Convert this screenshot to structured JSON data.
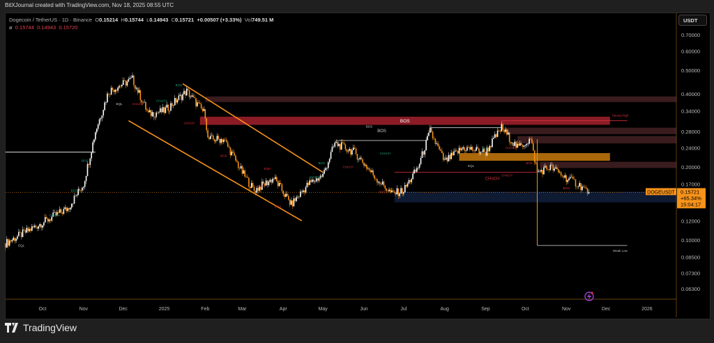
{
  "credit": "BitXJournal created with TradingView.com, Nov 18, 2025 08:55 UTC",
  "legend": {
    "symbol": "Dogecoin / TetherUS · 1D · Binance",
    "o_label": "O",
    "o": "0.15214",
    "h_label": "H",
    "h": "0.15744",
    "l_label": "L",
    "l": "0.14943",
    "c_label": "C",
    "c": "0.15721",
    "change": "+0.00507 (+3.33%)",
    "vol_label": "Vol",
    "vol": "749.51 M",
    "ind_symbol": "ø",
    "ind_values": [
      "0.15744",
      "0.14943",
      "0.15720"
    ]
  },
  "price_axis": {
    "unit": "USDT",
    "ticks": [
      "0.70000",
      "0.60000",
      "0.50000",
      "0.40000",
      "0.34000",
      "0.28000",
      "0.24000",
      "0.20000",
      "0.17000",
      "0.12000",
      "0.10000",
      "0.08500",
      "0.07300",
      "0.06300"
    ],
    "scale": "log",
    "last_price": "0.15721",
    "last_change": "+65.34%",
    "countdown": "15:04:17",
    "symbol_tag": "DOGEUSDT"
  },
  "time_axis": {
    "ticks": [
      {
        "label": "Oct",
        "date": "2024-10-01"
      },
      {
        "label": "Nov",
        "date": "2024-11-01"
      },
      {
        "label": "Dec",
        "date": "2024-12-01"
      },
      {
        "label": "2025",
        "date": "2025-01-01"
      },
      {
        "label": "Feb",
        "date": "2025-02-01"
      },
      {
        "label": "Mar",
        "date": "2025-03-01"
      },
      {
        "label": "Apr",
        "date": "2025-04-01"
      },
      {
        "label": "May",
        "date": "2025-05-01"
      },
      {
        "label": "Jun",
        "date": "2025-06-01"
      },
      {
        "label": "Jul",
        "date": "2025-07-01"
      },
      {
        "label": "Aug",
        "date": "2025-08-01"
      },
      {
        "label": "Sep",
        "date": "2025-09-01"
      },
      {
        "label": "Oct",
        "date": "2025-10-01"
      },
      {
        "label": "Nov",
        "date": "2025-11-01"
      },
      {
        "label": "Dec",
        "date": "2025-12-01"
      },
      {
        "label": "2026",
        "date": "2026-01-01"
      }
    ]
  },
  "colors": {
    "up": "#ffffff",
    "down": "#f7931a",
    "accent": "#f7931a",
    "bos_zone": "#8b1c26",
    "dark_zone": "#3a1c1e",
    "ob_zone": "#c87a0c",
    "demand_zone": "#0f1a33",
    "bull_label": "#1f9e7a",
    "bear_label": "#d0303c"
  },
  "chart_data": {
    "type": "candlestick",
    "title": "",
    "y_scale": "log",
    "ylim": [
      0.058,
      0.78
    ],
    "xlim": [
      "2024-09-03",
      "2026-02-20"
    ],
    "close_path": [
      [
        "2024-09-03",
        0.097
      ],
      [
        "2024-10-01",
        0.118
      ],
      [
        "2024-10-20",
        0.135
      ],
      [
        "2024-11-01",
        0.17
      ],
      [
        "2024-11-10",
        0.28
      ],
      [
        "2024-11-20",
        0.41
      ],
      [
        "2024-12-08",
        0.46
      ],
      [
        "2024-12-20",
        0.33
      ],
      [
        "2025-01-01",
        0.34
      ],
      [
        "2025-01-18",
        0.41
      ],
      [
        "2025-02-01",
        0.33
      ],
      [
        "2025-02-03",
        0.26
      ],
      [
        "2025-02-15",
        0.26
      ],
      [
        "2025-03-01",
        0.19
      ],
      [
        "2025-03-10",
        0.16
      ],
      [
        "2025-03-25",
        0.18
      ],
      [
        "2025-04-07",
        0.14
      ],
      [
        "2025-04-20",
        0.17
      ],
      [
        "2025-05-01",
        0.185
      ],
      [
        "2025-05-10",
        0.25
      ],
      [
        "2025-05-25",
        0.23
      ],
      [
        "2025-06-10",
        0.18
      ],
      [
        "2025-06-22",
        0.155
      ],
      [
        "2025-07-01",
        0.16
      ],
      [
        "2025-07-12",
        0.2
      ],
      [
        "2025-07-21",
        0.28
      ],
      [
        "2025-08-01",
        0.21
      ],
      [
        "2025-08-15",
        0.24
      ],
      [
        "2025-09-01",
        0.23
      ],
      [
        "2025-09-13",
        0.29
      ],
      [
        "2025-09-25",
        0.24
      ],
      [
        "2025-10-05",
        0.26
      ],
      [
        "2025-10-10",
        0.19
      ],
      [
        "2025-10-20",
        0.2
      ],
      [
        "2025-11-01",
        0.18
      ],
      [
        "2025-11-10",
        0.17
      ],
      [
        "2025-11-18",
        0.15721
      ]
    ],
    "zones": [
      {
        "kind": "dark_zone",
        "from": "2025-02-01",
        "to": "2026-02-20",
        "top": 0.39,
        "bottom": 0.37
      },
      {
        "kind": "bos_zone",
        "from": "2025-01-28",
        "to": "2025-12-04",
        "top": 0.322,
        "bottom": 0.298,
        "label": "BOS"
      },
      {
        "kind": "dark_zone",
        "from": "2025-09-15",
        "to": "2026-02-20",
        "top": 0.29,
        "bottom": 0.273
      },
      {
        "kind": "dark_zone",
        "from": "2025-09-25",
        "to": "2026-02-20",
        "top": 0.268,
        "bottom": 0.25
      },
      {
        "kind": "ob_zone",
        "from": "2025-08-12",
        "to": "2025-12-04",
        "top": 0.228,
        "bottom": 0.212
      },
      {
        "kind": "dark_zone",
        "from": "2025-10-12",
        "to": "2026-02-20",
        "top": 0.21,
        "bottom": 0.198
      },
      {
        "kind": "demand_zone",
        "from": "2025-06-24",
        "to": "2026-02-20",
        "top": 0.158,
        "bottom": 0.143
      }
    ],
    "lines": [
      {
        "color": "#ffffff",
        "from": "2024-09-03",
        "to": "2024-11-10",
        "price": 0.23
      },
      {
        "color": "#cccccc",
        "from": "2025-05-11",
        "to": "2025-07-19",
        "price": 0.257,
        "label": "BOS"
      },
      {
        "color": "#cccccc",
        "from": "2025-07-21",
        "to": "2025-09-13",
        "price": 0.29
      },
      {
        "color": "#d0303c",
        "from": "2025-09-13",
        "to": "2025-12-17",
        "price": 0.31,
        "label": "Strong High"
      },
      {
        "color": "#d0303c",
        "from": "2025-06-24",
        "to": "2025-10-10",
        "price": 0.19,
        "label": "CHoCH"
      },
      {
        "color": "#bbbbbb",
        "from": "2025-10-10",
        "to": "2025-12-17",
        "price": 0.095,
        "label": "Weak Low"
      }
    ],
    "channel": [
      {
        "from": [
          "2025-01-15",
          0.44
        ],
        "to": [
          "2025-05-01",
          0.19
        ]
      },
      {
        "from": [
          "2024-12-05",
          0.31
        ],
        "to": [
          "2025-04-15",
          0.12
        ]
      }
    ],
    "tags": [
      {
        "text": "EQL",
        "date": "2024-09-15",
        "price": 0.094,
        "kind": "neutral"
      },
      {
        "text": "CHoCH",
        "date": "2024-10-10",
        "price": 0.125,
        "kind": "bull"
      },
      {
        "text": "BOS",
        "date": "2024-11-02",
        "price": 0.21,
        "kind": "bull"
      },
      {
        "text": "BOS",
        "date": "2024-10-25",
        "price": 0.158,
        "kind": "bull"
      },
      {
        "text": "EQL",
        "date": "2024-11-28",
        "price": 0.36,
        "kind": "neutral"
      },
      {
        "text": "CHoCH",
        "date": "2024-12-12",
        "price": 0.36,
        "kind": "bear"
      },
      {
        "text": "CHoCH",
        "date": "2024-12-30",
        "price": 0.37,
        "kind": "bull"
      },
      {
        "text": "BOS",
        "date": "2025-01-12",
        "price": 0.43,
        "kind": "bull"
      },
      {
        "text": "CHoCH",
        "date": "2025-01-20",
        "price": 0.3,
        "kind": "bear"
      },
      {
        "text": "BOS",
        "date": "2025-02-15",
        "price": 0.22,
        "kind": "bear"
      },
      {
        "text": "EQH",
        "date": "2025-03-20",
        "price": 0.195,
        "kind": "bear"
      },
      {
        "text": "BOS",
        "date": "2025-03-15",
        "price": 0.165,
        "kind": "bear"
      },
      {
        "text": "BOS",
        "date": "2025-03-28",
        "price": 0.136,
        "kind": "bear"
      },
      {
        "text": "CHoCH",
        "date": "2025-04-25",
        "price": 0.18,
        "kind": "bull"
      },
      {
        "text": "BOS",
        "date": "2025-04-30",
        "price": 0.205,
        "kind": "bull"
      },
      {
        "text": "BOS",
        "date": "2025-06-05",
        "price": 0.29,
        "kind": "neutral"
      },
      {
        "text": "CHoCH",
        "date": "2025-05-20",
        "price": 0.198,
        "kind": "bear"
      },
      {
        "text": "CHoCH",
        "date": "2025-06-17",
        "price": 0.225,
        "kind": "bull"
      },
      {
        "text": "BOS",
        "date": "2025-06-15",
        "price": 0.156,
        "kind": "bear"
      },
      {
        "text": "BOS",
        "date": "2025-09-01",
        "price": 0.235,
        "kind": "bull"
      },
      {
        "text": "EQL",
        "date": "2025-08-21",
        "price": 0.2,
        "kind": "neutral"
      },
      {
        "text": "CHoCH",
        "date": "2025-09-20",
        "price": 0.237,
        "kind": "bear"
      },
      {
        "text": "BOS",
        "date": "2025-10-04",
        "price": 0.205,
        "kind": "bear"
      },
      {
        "text": "CHoCH",
        "date": "2025-09-17",
        "price": 0.183,
        "kind": "bear"
      },
      {
        "text": "BOS",
        "date": "2025-11-01",
        "price": 0.162,
        "kind": "bear"
      }
    ]
  }
}
